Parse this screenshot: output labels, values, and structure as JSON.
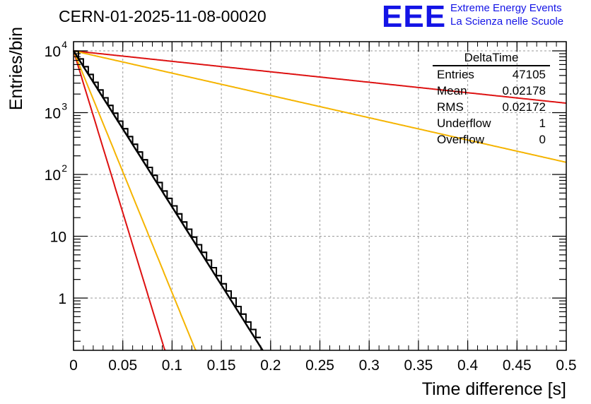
{
  "header": {
    "run_title": "CERN-01-2025-11-08-00020",
    "logo_text": "EEE",
    "logo_line1": "Extreme Energy Events",
    "logo_line2": "La Scienza nelle Scuole"
  },
  "stats_box": {
    "name": "DeltaTime",
    "rows": [
      {
        "label": "Entries",
        "value": "47105"
      },
      {
        "label": "Mean",
        "value": "0.02178"
      },
      {
        "label": "RMS",
        "value": "0.02172"
      },
      {
        "label": "Underflow",
        "value": "1"
      },
      {
        "label": "Overflow",
        "value": "0"
      }
    ]
  },
  "colors": {
    "histogram": "#000000",
    "fit": "#000000",
    "red": "#dd1111",
    "orange": "#f5b400",
    "grid": "#9a9a9a"
  },
  "chart_data": {
    "type": "histogram",
    "title": "CERN-01-2025-11-08-00020",
    "xlabel": "Time difference [s]",
    "ylabel": "Entries/bin",
    "xlim": [
      0,
      0.5
    ],
    "ylim": [
      0.15,
      15000
    ],
    "yscale": "log",
    "grid": true,
    "bin_width": 0.005,
    "xticks": [
      0,
      0.05,
      0.1,
      0.15,
      0.2,
      0.25,
      0.3,
      0.35,
      0.4,
      0.45,
      0.5
    ],
    "xtick_labels": [
      "0",
      "0.05",
      "0.1",
      "0.15",
      "0.2",
      "0.25",
      "0.3",
      "0.35",
      "0.4",
      "0.45",
      "0.5"
    ],
    "yticks": [
      1,
      10,
      100,
      1000,
      10000
    ],
    "ytick_labels": [
      {
        "base": "1",
        "exp": ""
      },
      {
        "base": "10",
        "exp": ""
      },
      {
        "base": "10",
        "exp": "2"
      },
      {
        "base": "10",
        "exp": "3"
      },
      {
        "base": "10",
        "exp": "4"
      }
    ],
    "bins": [
      {
        "x": 0.0,
        "y": 9900
      },
      {
        "x": 0.005,
        "y": 7400
      },
      {
        "x": 0.01,
        "y": 5550
      },
      {
        "x": 0.015,
        "y": 4150
      },
      {
        "x": 0.02,
        "y": 3100
      },
      {
        "x": 0.025,
        "y": 2330
      },
      {
        "x": 0.03,
        "y": 1740
      },
      {
        "x": 0.035,
        "y": 1310
      },
      {
        "x": 0.04,
        "y": 980
      },
      {
        "x": 0.045,
        "y": 730
      },
      {
        "x": 0.05,
        "y": 550
      },
      {
        "x": 0.055,
        "y": 410
      },
      {
        "x": 0.06,
        "y": 308
      },
      {
        "x": 0.065,
        "y": 231
      },
      {
        "x": 0.07,
        "y": 173
      },
      {
        "x": 0.075,
        "y": 130
      },
      {
        "x": 0.08,
        "y": 97
      },
      {
        "x": 0.085,
        "y": 74
      },
      {
        "x": 0.09,
        "y": 54
      },
      {
        "x": 0.095,
        "y": 41
      },
      {
        "x": 0.1,
        "y": 31
      },
      {
        "x": 0.105,
        "y": 23
      },
      {
        "x": 0.11,
        "y": 17
      },
      {
        "x": 0.115,
        "y": 13
      },
      {
        "x": 0.12,
        "y": 9.7
      },
      {
        "x": 0.125,
        "y": 7.3
      },
      {
        "x": 0.13,
        "y": 5.5
      },
      {
        "x": 0.135,
        "y": 4.1
      },
      {
        "x": 0.14,
        "y": 3.1
      },
      {
        "x": 0.145,
        "y": 2.3
      },
      {
        "x": 0.15,
        "y": 1.7
      },
      {
        "x": 0.155,
        "y": 1.3
      },
      {
        "x": 0.16,
        "y": 1
      },
      {
        "x": 0.165,
        "y": 0.73
      },
      {
        "x": 0.17,
        "y": 0.55
      },
      {
        "x": 0.175,
        "y": 0.41
      },
      {
        "x": 0.18,
        "y": 0.31
      },
      {
        "x": 0.185,
        "y": 0.23
      }
    ],
    "fit": {
      "name": "exponential fit",
      "amplitude": 10000,
      "tau": 0.0172
    },
    "reference_curves": [
      {
        "name": "red-steep",
        "color": "red",
        "amplitude": 10000,
        "tau": 0.0083
      },
      {
        "name": "orange-steep",
        "color": "orange",
        "amplitude": 10000,
        "tau": 0.0111
      },
      {
        "name": "red-shallow",
        "color": "red",
        "amplitude": 10000,
        "tau": 0.2565
      },
      {
        "name": "orange-shallow",
        "color": "orange",
        "amplitude": 10000,
        "tau": 0.1204
      }
    ]
  }
}
